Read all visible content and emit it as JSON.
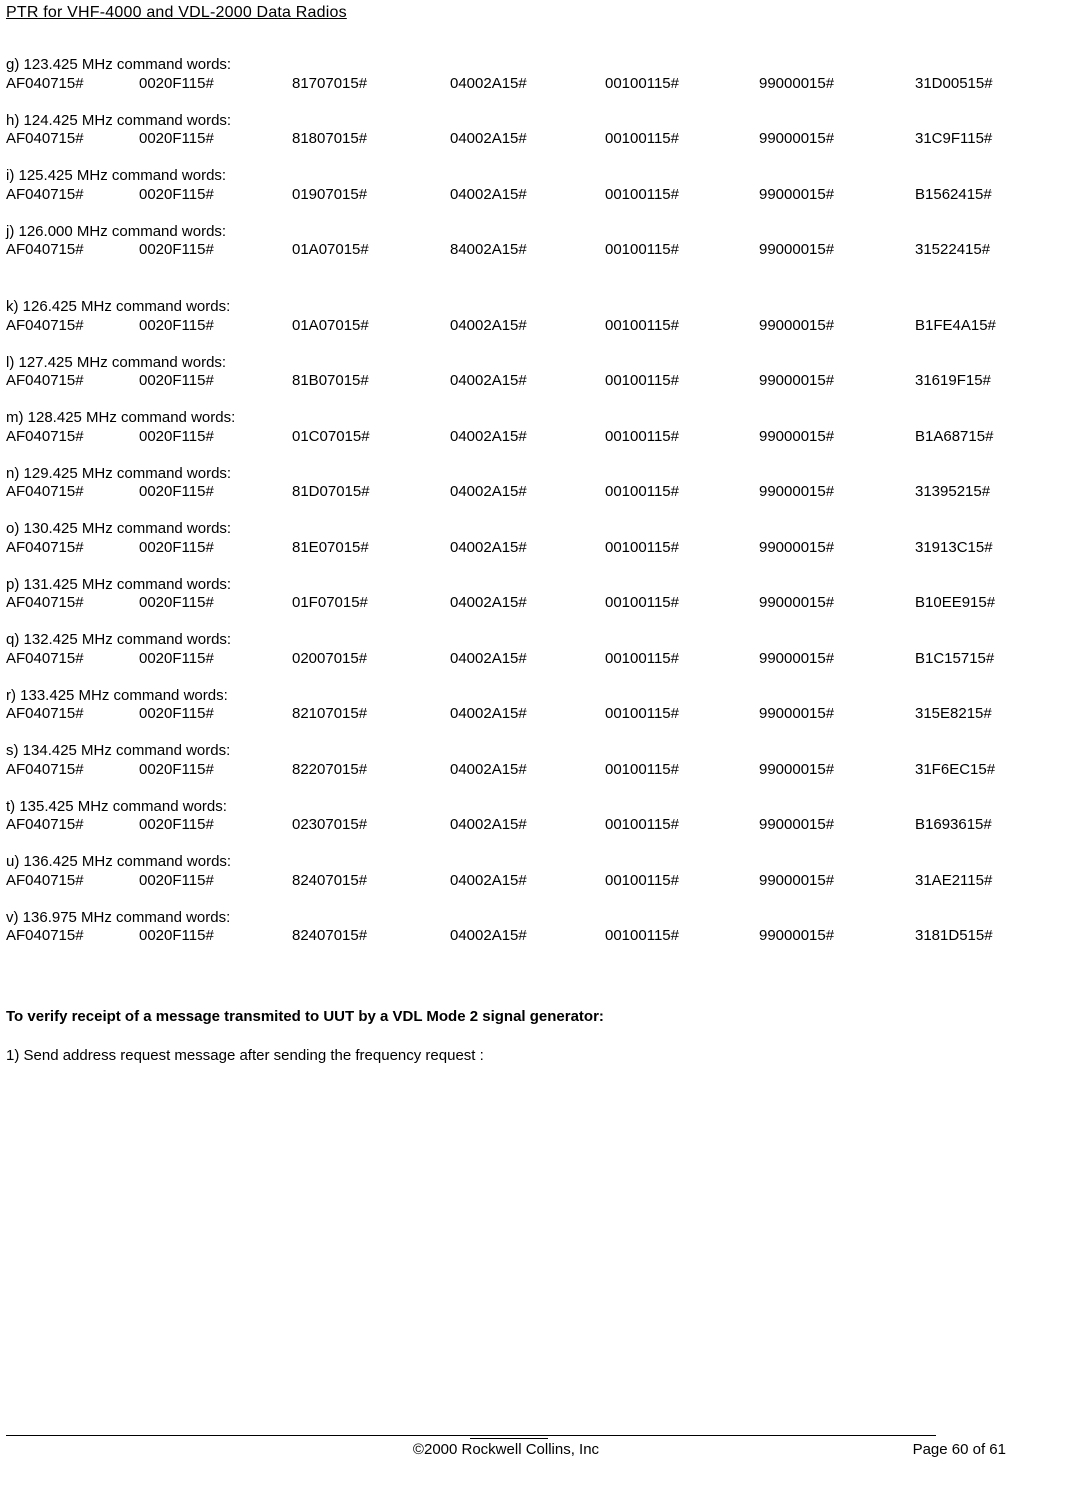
{
  "document": {
    "header_title": "PTR for VHF-4000 and VDL-2000 Data Radios",
    "footer_copyright": "©2000 Rockwell Collins, Inc",
    "footer_page": "Page 60 of 61",
    "verify_heading": "To verify receipt of a message transmited to UUT by a VDL Mode 2 signal generator:",
    "step1": "1) Send address request message after sending the frequency request :"
  },
  "sections": [
    {
      "label": "g) 123.425 MHz command words:",
      "words": [
        "AF040715#",
        "0020F115#",
        "81707015#",
        "04002A15#",
        "00100115#",
        "99000015#",
        "31D00515#"
      ],
      "extra_gap": false
    },
    {
      "label": "h) 124.425 MHz command words:",
      "words": [
        "AF040715#",
        "0020F115#",
        "81807015#",
        "04002A15#",
        "00100115#",
        "99000015#",
        "31C9F115#"
      ],
      "extra_gap": false
    },
    {
      "label": "i) 125.425 MHz command words:",
      "words": [
        "AF040715#",
        "0020F115#",
        "01907015#",
        "04002A15#",
        "00100115#",
        "99000015#",
        "B1562415#"
      ],
      "extra_gap": false
    },
    {
      "label": "j) 126.000 MHz command words:",
      "words": [
        "AF040715#",
        "0020F115#",
        "01A07015#",
        "84002A15#",
        "00100115#",
        "99000015#",
        "31522415#"
      ],
      "extra_gap": true
    },
    {
      "label": "k) 126.425 MHz command words:",
      "words": [
        "AF040715#",
        "0020F115#",
        "01A07015#",
        "04002A15#",
        "00100115#",
        "99000015#",
        "B1FE4A15#"
      ],
      "extra_gap": false
    },
    {
      "label": "l) 127.425 MHz command words:",
      "words": [
        "AF040715#",
        "0020F115#",
        "81B07015#",
        "04002A15#",
        "00100115#",
        "99000015#",
        "31619F15#"
      ],
      "extra_gap": false
    },
    {
      "label": "m) 128.425 MHz command words:",
      "words": [
        "AF040715#",
        "0020F115#",
        "01C07015#",
        "04002A15#",
        "00100115#",
        "99000015#",
        "B1A68715#"
      ],
      "extra_gap": false
    },
    {
      "label": "n) 129.425 MHz command words:",
      "words": [
        "AF040715#",
        "0020F115#",
        "81D07015#",
        "04002A15#",
        "00100115#",
        "99000015#",
        "31395215#"
      ],
      "extra_gap": false
    },
    {
      "label": "o) 130.425 MHz command words:",
      "words": [
        "AF040715#",
        "0020F115#",
        "81E07015#",
        "04002A15#",
        "00100115#",
        "99000015#",
        "31913C15#"
      ],
      "extra_gap": false
    },
    {
      "label": "p) 131.425 MHz command words:",
      "words": [
        "AF040715#",
        "0020F115#",
        "01F07015#",
        "04002A15#",
        "00100115#",
        "99000015#",
        "B10EE915#"
      ],
      "extra_gap": false
    },
    {
      "label": "q) 132.425 MHz command words:",
      "words": [
        "AF040715#",
        "0020F115#",
        "02007015#",
        "04002A15#",
        "00100115#",
        "99000015#",
        "B1C15715#"
      ],
      "extra_gap": false
    },
    {
      "label": "r) 133.425 MHz command words:",
      "words": [
        "AF040715#",
        "0020F115#",
        "82107015#",
        "04002A15#",
        "00100115#",
        "99000015#",
        "315E8215#"
      ],
      "extra_gap": false
    },
    {
      "label": "s) 134.425 MHz command words:",
      "words": [
        "AF040715#",
        "0020F115#",
        "82207015#",
        "04002A15#",
        "00100115#",
        "99000015#",
        "31F6EC15#"
      ],
      "extra_gap": false
    },
    {
      "label": "t) 135.425 MHz command words:",
      "words": [
        "AF040715#",
        "0020F115#",
        "02307015#",
        "04002A15#",
        "00100115#",
        "99000015#",
        "B1693615#"
      ],
      "extra_gap": false
    },
    {
      "label": "u) 136.425 MHz command words:",
      "words": [
        "AF040715#",
        "0020F115#",
        "82407015#",
        "04002A15#",
        "00100115#",
        "99000015#",
        "31AE2115#"
      ],
      "extra_gap": false
    },
    {
      "label": "v) 136.975 MHz command words:",
      "words": [
        "AF040715#",
        "0020F115#",
        "82407015#",
        "04002A15#",
        "00100115#",
        "99000015#",
        "3181D515#"
      ],
      "extra_gap": false
    }
  ]
}
